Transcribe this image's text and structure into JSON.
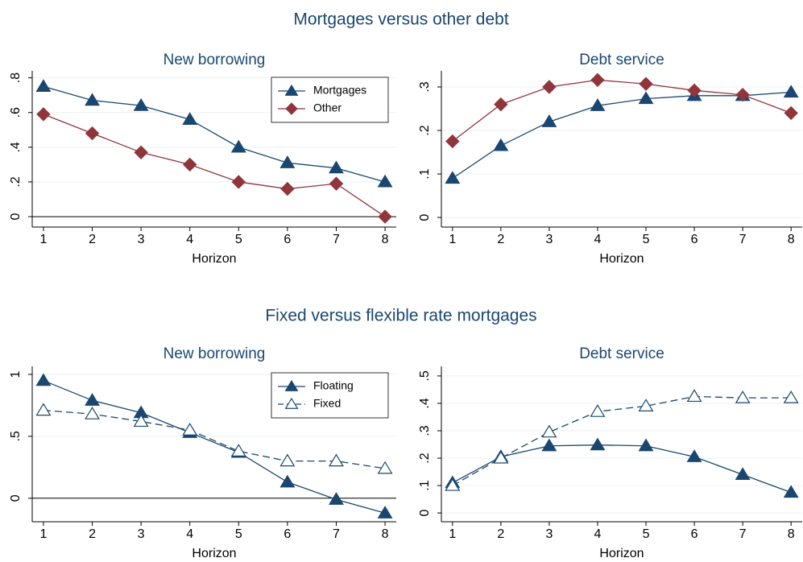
{
  "section_titles": [
    "Mortgages versus other debt",
    "Fixed versus flexible rate mortgages"
  ],
  "chart_data": [
    {
      "type": "line",
      "title": "New borrowing",
      "x_label": "Horizon",
      "x": [
        1,
        2,
        3,
        4,
        5,
        6,
        7,
        8
      ],
      "xlim": [
        0.77,
        8.23
      ],
      "xticks": [
        1,
        2,
        3,
        4,
        5,
        6,
        7,
        8
      ],
      "ylim": [
        -0.06,
        0.84
      ],
      "yticks": [
        0,
        {
          "value": 0.2,
          "label": ".2"
        },
        {
          "value": 0.4,
          "label": ".4"
        },
        {
          "value": 0.6,
          "label": ".6"
        },
        {
          "value": 0.8,
          "label": ".8"
        }
      ],
      "grid": true,
      "yline": 0,
      "legend": "top right",
      "series": [
        {
          "name": "Mortgages",
          "color": "#1a476f",
          "marker": "triangle",
          "dash": false,
          "values": [
            0.75,
            0.67,
            0.64,
            0.56,
            0.4,
            0.31,
            0.28,
            0.2
          ]
        },
        {
          "name": "Other",
          "color": "#90353b",
          "marker": "diamond",
          "dash": false,
          "values": [
            0.59,
            0.48,
            0.37,
            0.3,
            0.2,
            0.16,
            0.19,
            0.0
          ]
        }
      ]
    },
    {
      "type": "line",
      "title": "Debt service",
      "x_label": "Horizon",
      "x": [
        1,
        2,
        3,
        4,
        5,
        6,
        7,
        8
      ],
      "xlim": [
        0.77,
        8.23
      ],
      "xticks": [
        1,
        2,
        3,
        4,
        5,
        6,
        7,
        8
      ],
      "ylim": [
        -0.022,
        0.337
      ],
      "yticks": [
        0,
        {
          "value": 0.1,
          "label": ".1"
        },
        {
          "value": 0.2,
          "label": ".2"
        },
        {
          "value": 0.3,
          "label": ".3"
        }
      ],
      "grid": true,
      "series": [
        {
          "name": "Mortgages",
          "color": "#1a476f",
          "marker": "triangle",
          "dash": false,
          "values": [
            0.09,
            0.165,
            0.22,
            0.257,
            0.273,
            0.28,
            0.28,
            0.288
          ]
        },
        {
          "name": "Other",
          "color": "#90353b",
          "marker": "diamond",
          "dash": false,
          "values": [
            0.175,
            0.26,
            0.3,
            0.316,
            0.307,
            0.292,
            0.282,
            0.24
          ]
        }
      ]
    },
    {
      "type": "line",
      "title": "New borrowing",
      "x_label": "Horizon",
      "x": [
        1,
        2,
        3,
        4,
        5,
        6,
        7,
        8
      ],
      "xlim": [
        0.77,
        8.23
      ],
      "xticks": [
        1,
        2,
        3,
        4,
        5,
        6,
        7,
        8
      ],
      "ylim": [
        -0.19,
        1.065
      ],
      "yticks": [
        0,
        {
          "value": 0.5,
          "label": ".5"
        },
        1
      ],
      "grid": true,
      "yline": 0,
      "legend": "top right",
      "series": [
        {
          "name": "Floating",
          "color": "#1a476f",
          "marker": "triangle",
          "dash": false,
          "values": [
            0.95,
            0.79,
            0.69,
            0.53,
            0.37,
            0.13,
            -0.01,
            -0.12
          ]
        },
        {
          "name": "Fixed",
          "color": "#1a476f",
          "marker": "hollow-triangle",
          "dash": true,
          "values": [
            0.71,
            0.68,
            0.62,
            0.55,
            0.38,
            0.3,
            0.3,
            0.24
          ]
        }
      ]
    },
    {
      "type": "line",
      "title": "Debt service",
      "x_label": "Horizon",
      "x": [
        1,
        2,
        3,
        4,
        5,
        6,
        7,
        8
      ],
      "xlim": [
        0.77,
        8.23
      ],
      "xticks": [
        1,
        2,
        3,
        4,
        5,
        6,
        7,
        8
      ],
      "ylim": [
        -0.032,
        0.535
      ],
      "yticks": [
        0,
        {
          "value": 0.1,
          "label": ".1"
        },
        {
          "value": 0.2,
          "label": ".2"
        },
        {
          "value": 0.3,
          "label": ".3"
        },
        {
          "value": 0.4,
          "label": ".4"
        },
        {
          "value": 0.5,
          "label": ".5"
        }
      ],
      "grid": true,
      "series": [
        {
          "name": "Floating",
          "color": "#1a476f",
          "marker": "triangle",
          "dash": false,
          "values": [
            0.11,
            0.205,
            0.245,
            0.248,
            0.245,
            0.205,
            0.14,
            0.075
          ]
        },
        {
          "name": "Fixed",
          "color": "#1a476f",
          "marker": "hollow-triangle",
          "dash": true,
          "values": [
            0.1,
            0.2,
            0.295,
            0.37,
            0.39,
            0.425,
            0.42,
            0.42
          ]
        }
      ]
    }
  ]
}
